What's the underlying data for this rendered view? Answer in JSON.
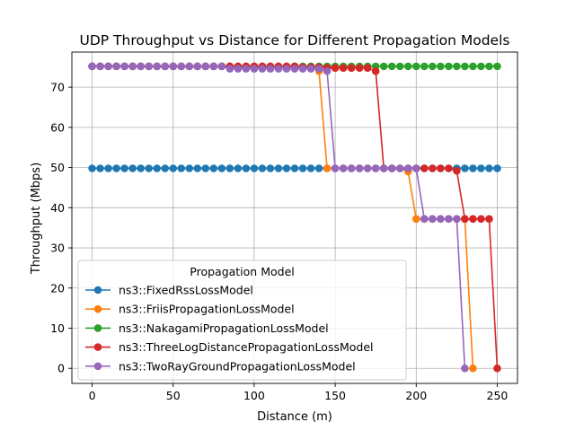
{
  "chart_data": {
    "type": "line",
    "title": "UDP Throughput vs Distance for Different Propagation Models",
    "xlabel": "Distance (m)",
    "ylabel": "Throughput (Mbps)",
    "xlim": [
      -12.5,
      262.5
    ],
    "ylim": [
      -3.75,
      78.75
    ],
    "xticks": [
      0,
      50,
      100,
      150,
      200,
      250
    ],
    "yticks": [
      0,
      10,
      20,
      30,
      40,
      50,
      60,
      70
    ],
    "grid": true,
    "legend": {
      "title": "Propagation Model",
      "placement": "lower-left"
    },
    "x_start": 0,
    "x_step": 5,
    "series": [
      {
        "name": "ns3::FixedRssLossModel",
        "color": "#1f77b4",
        "values": [
          49.8,
          49.8,
          49.8,
          49.8,
          49.8,
          49.8,
          49.8,
          49.8,
          49.8,
          49.8,
          49.8,
          49.8,
          49.8,
          49.8,
          49.8,
          49.8,
          49.8,
          49.8,
          49.8,
          49.8,
          49.8,
          49.8,
          49.8,
          49.8,
          49.8,
          49.8,
          49.8,
          49.8,
          49.8,
          49.8,
          49.8,
          49.8,
          49.8,
          49.8,
          49.8,
          49.8,
          49.8,
          49.8,
          49.8,
          49.8,
          49.8,
          49.8,
          49.8,
          49.8,
          49.8,
          49.8,
          49.8,
          49.8,
          49.8,
          49.8,
          49.8
        ]
      },
      {
        "name": "ns3::FriisPropagationLossModel",
        "color": "#ff7f0e",
        "values": [
          75.2,
          75.2,
          75.2,
          75.2,
          75.2,
          75.2,
          75.2,
          75.2,
          75.2,
          75.2,
          75.2,
          75.2,
          75.2,
          75.2,
          75.2,
          75.2,
          75.2,
          75.0,
          75.0,
          75.0,
          75.0,
          75.0,
          75.0,
          75.0,
          75.0,
          75.0,
          75.0,
          75.0,
          74.0,
          49.8,
          49.8,
          49.8,
          49.8,
          49.8,
          49.8,
          49.8,
          49.8,
          49.8,
          49.8,
          49.0,
          37.2,
          37.2,
          37.2,
          37.2,
          37.2,
          37.2,
          37.2,
          0
        ]
      },
      {
        "name": "ns3::NakagamiPropagationLossModel",
        "color": "#2ca02c",
        "values": [
          75.2,
          75.2,
          75.2,
          75.2,
          75.2,
          75.2,
          75.2,
          75.2,
          75.2,
          75.2,
          75.2,
          75.2,
          75.2,
          75.2,
          75.2,
          75.2,
          75.2,
          75.2,
          75.2,
          75.2,
          75.2,
          75.2,
          75.2,
          75.2,
          75.2,
          75.2,
          75.2,
          75.2,
          75.2,
          75.2,
          75.2,
          75.2,
          75.2,
          75.2,
          75.2,
          75.2,
          75.2,
          75.2,
          75.2,
          75.2,
          75.2,
          75.2,
          75.2,
          75.2,
          75.2,
          75.2,
          75.2,
          75.2,
          75.2,
          75.2,
          75.2
        ]
      },
      {
        "name": "ns3::ThreeLogDistancePropagationLossModel",
        "color": "#d62728",
        "values": [
          75.2,
          75.2,
          75.2,
          75.2,
          75.2,
          75.2,
          75.2,
          75.2,
          75.2,
          75.2,
          75.2,
          75.2,
          75.2,
          75.2,
          75.2,
          75.2,
          75.2,
          75.2,
          75.2,
          75.2,
          75.2,
          75.2,
          75.2,
          75.2,
          75.2,
          75.2,
          75.0,
          75.0,
          75.0,
          74.8,
          74.8,
          74.8,
          74.8,
          74.8,
          74.8,
          74.0,
          49.8,
          49.8,
          49.8,
          49.8,
          49.8,
          49.8,
          49.8,
          49.8,
          49.8,
          49.2,
          37.2,
          37.2,
          37.2,
          37.2,
          0
        ]
      },
      {
        "name": "ns3::TwoRayGroundPropagationLossModel",
        "color": "#9467bd",
        "values": [
          75.2,
          75.2,
          75.2,
          75.2,
          75.2,
          75.2,
          75.2,
          75.2,
          75.2,
          75.2,
          75.2,
          75.2,
          75.2,
          75.2,
          75.2,
          75.2,
          75.2,
          74.6,
          74.6,
          74.6,
          74.6,
          74.6,
          74.6,
          74.6,
          74.6,
          74.6,
          74.6,
          74.6,
          74.6,
          74.0,
          49.8,
          49.8,
          49.8,
          49.8,
          49.8,
          49.8,
          49.8,
          49.8,
          49.8,
          49.8,
          49.8,
          37.2,
          37.2,
          37.2,
          37.2,
          37.2,
          0
        ]
      }
    ]
  }
}
